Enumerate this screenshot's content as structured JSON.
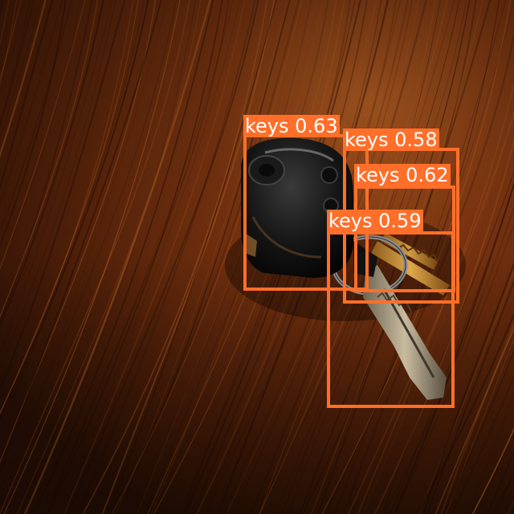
{
  "scene": {
    "description_icon": "car-keys-on-wooden-table",
    "colors": {
      "wood_dark": "#2a1208",
      "wood_mid": "#6b2c0c",
      "wood_light": "#a5531d",
      "box": "#ff6f2a",
      "label_text": "#ffffff"
    }
  },
  "detections": [
    {
      "class": "keys",
      "score": "0.63",
      "text": "keys 0.63"
    },
    {
      "class": "keys",
      "score": "0.58",
      "text": "keys 0.58"
    },
    {
      "class": "keys",
      "score": "0.62",
      "text": "keys 0.62"
    },
    {
      "class": "keys",
      "score": "0.59",
      "text": "keys 0.59"
    }
  ]
}
